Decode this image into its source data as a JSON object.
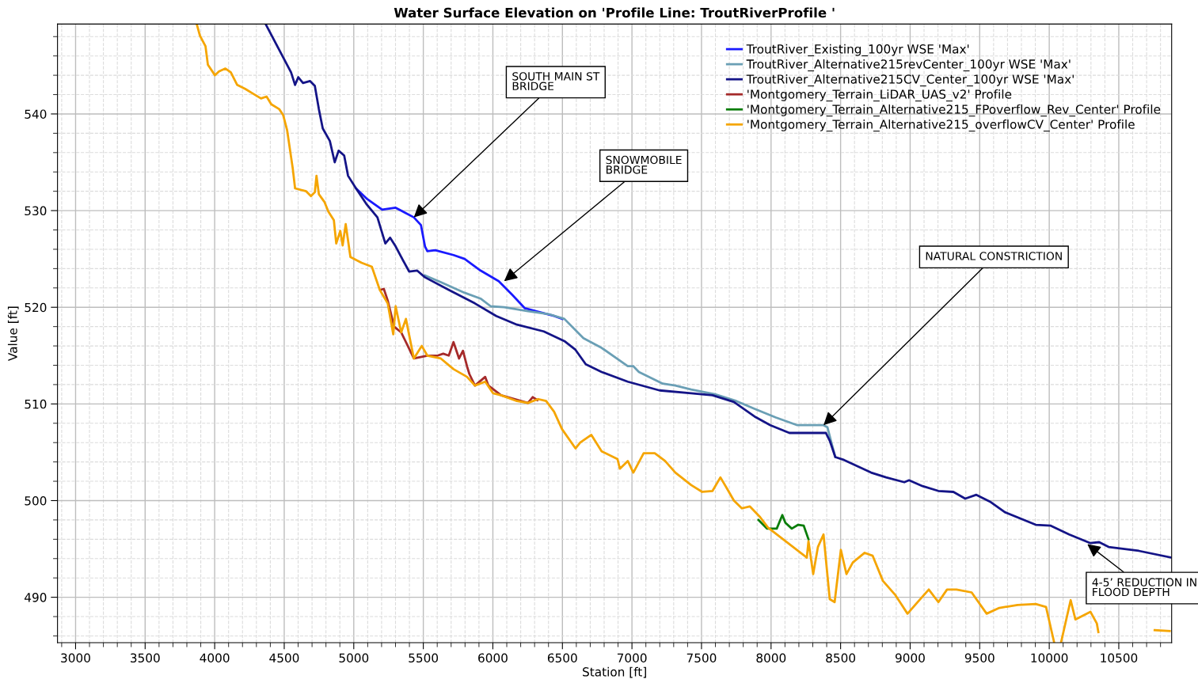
{
  "chart_data": {
    "type": "line",
    "title": "Water Surface Elevation on 'Profile Line: TroutRiverProfile '",
    "xlabel": "Station [ft]",
    "ylabel": "Value [ft]",
    "xlim": [
      2870,
      10880
    ],
    "ylim": [
      485.3,
      549.3
    ],
    "xticks": [
      3000,
      3500,
      4000,
      4500,
      5000,
      5500,
      6000,
      6500,
      7000,
      7500,
      8000,
      8500,
      9000,
      9500,
      10000,
      10500
    ],
    "yticks": [
      490,
      500,
      510,
      520,
      530,
      540
    ],
    "grid": true,
    "legend": "top right",
    "line_style": "solid",
    "marker": "none",
    "series": [
      {
        "name": "TroutRiver_Existing_100yr WSE 'Max'",
        "color": "#1a1aff",
        "x": [
          5016,
          5096,
          5204,
          5301,
          5432,
          5483,
          5512,
          5529,
          5586,
          5717,
          5797,
          5911,
          6042,
          6138,
          6230,
          6309,
          6440,
          6500
        ],
        "values": [
          532.3,
          531.2,
          530.1,
          530.3,
          529.3,
          528.5,
          526.3,
          525.8,
          525.9,
          525.4,
          525.0,
          523.8,
          522.7,
          521.3,
          519.9,
          519.6,
          519.1,
          518.8
        ]
      },
      {
        "name": "TroutRiver_Alternative215revCenter_100yr WSE 'Max'",
        "color": "#6a9fb5",
        "x": [
          5512,
          5626,
          5797,
          5911,
          5985,
          6081,
          6252,
          6400,
          6514,
          6651,
          6782,
          6970,
          7010,
          7050,
          7221,
          7312,
          7426,
          7597,
          7750,
          7881,
          8035,
          8189,
          8377,
          8405,
          8434,
          8462
        ],
        "values": [
          523.3,
          522.6,
          521.5,
          520.9,
          520.1,
          520.0,
          519.6,
          519.3,
          518.8,
          516.8,
          515.8,
          513.9,
          513.9,
          513.3,
          512.1,
          511.9,
          511.5,
          511.0,
          510.3,
          509.5,
          508.6,
          507.8,
          507.8,
          507.6,
          506.0,
          504.5
        ]
      },
      {
        "name": "TroutRiver_Alternative215CV_Center_100yr WSE 'Max'",
        "color": "#141487",
        "x": [
          4370,
          4549,
          4578,
          4601,
          4635,
          4686,
          4720,
          4749,
          4777,
          4828,
          4863,
          4891,
          4931,
          4959,
          5016,
          5090,
          5170,
          5227,
          5261,
          5301,
          5341,
          5398,
          5455,
          5512,
          5683,
          5871,
          6024,
          6173,
          6366,
          6514,
          6594,
          6668,
          6782,
          6970,
          7198,
          7426,
          7579,
          7733,
          7881,
          7995,
          8132,
          8394,
          8422,
          8462,
          8525,
          8719,
          8827,
          8958,
          8992,
          9089,
          9203,
          9311,
          9396,
          9476,
          9573,
          9681,
          9903,
          10011,
          10143,
          10296,
          10359,
          10427,
          10644,
          10880
        ],
        "values": [
          549.2,
          544.3,
          543.0,
          543.8,
          543.2,
          543.4,
          542.9,
          540.5,
          538.5,
          537.2,
          535.0,
          536.2,
          535.7,
          533.6,
          532.3,
          530.7,
          529.3,
          526.6,
          527.2,
          526.3,
          525.2,
          523.7,
          523.8,
          523.1,
          521.8,
          520.4,
          519.1,
          518.2,
          517.5,
          516.5,
          515.6,
          514.1,
          513.3,
          512.3,
          511.4,
          511.1,
          510.9,
          510.2,
          508.7,
          507.8,
          507.0,
          507.0,
          506.2,
          504.5,
          504.2,
          502.9,
          502.4,
          501.9,
          502.1,
          501.5,
          501.0,
          500.9,
          500.2,
          500.6,
          499.9,
          498.8,
          497.5,
          497.4,
          496.5,
          495.6,
          495.7,
          495.2,
          494.8,
          494.1
        ]
      },
      {
        "name": "'Montgomery_Terrain_LiDAR_UAS_v2' Profile",
        "color": "#a52a2a",
        "x": [
          5190,
          5216,
          5244,
          5290,
          5341,
          5432,
          5529,
          5603,
          5643,
          5683,
          5717,
          5757,
          5785,
          5814,
          5831,
          5871,
          5945,
          5968,
          6059,
          6252,
          6286,
          6320
        ],
        "values": [
          521.8,
          521.9,
          520.7,
          518.0,
          517.4,
          514.7,
          515.0,
          515.0,
          515.2,
          515.0,
          516.4,
          514.7,
          515.5,
          513.9,
          513.1,
          511.9,
          512.8,
          511.9,
          510.9,
          510.1,
          510.7,
          510.4
        ]
      },
      {
        "name": "'Montgomery_Terrain_Alternative215_FPoverflow_Rev_Center' Profile",
        "color": "#0a7d0a",
        "x": [
          7910,
          7972,
          8041,
          8081,
          8103,
          8149,
          8195,
          8235,
          8269
        ],
        "values": [
          498.0,
          497.1,
          497.1,
          498.5,
          497.7,
          497.1,
          497.5,
          497.4,
          496.0
        ]
      },
      {
        "name": "'Montgomery_Terrain_Alternative215_overflowCV_Center' Profile",
        "color": "#f5a500",
        "x": [
          3871,
          3894,
          3934,
          3951,
          4002,
          4031,
          4077,
          4116,
          4162,
          4219,
          4276,
          4333,
          4373,
          4407,
          4464,
          4492,
          4521,
          4561,
          4578,
          4658,
          4692,
          4720,
          4732,
          4749,
          4789,
          4817,
          4857,
          4874,
          4903,
          4920,
          4942,
          4976,
          5056,
          5130,
          5187,
          5244,
          5284,
          5301,
          5341,
          5375,
          5432,
          5489,
          5529,
          5626,
          5717,
          5814,
          5871,
          5945,
          6002,
          6059,
          6173,
          6252,
          6326,
          6383,
          6440,
          6497,
          6594,
          6628,
          6708,
          6782,
          6896,
          6913,
          6970,
          7010,
          7084,
          7164,
          7238,
          7312,
          7426,
          7505,
          7579,
          7636,
          7693,
          7733,
          7790,
          7847,
          7921,
          7978,
          8257,
          8269,
          8303,
          8337,
          8377,
          8422,
          8457,
          8502,
          8542,
          8588,
          8673,
          8730,
          8804,
          8895,
          8981,
          9072,
          9134,
          9203,
          9265,
          9333,
          9442,
          9550,
          9641,
          9772,
          9903,
          9977,
          10023,
          10034,
          10060,
          10086,
          10154,
          10188,
          10296,
          10342,
          10353,
          10500,
          10758,
          10866
        ],
        "values": [
          549.3,
          548.1,
          547.0,
          545.1,
          544.0,
          544.4,
          544.7,
          544.3,
          543.0,
          542.6,
          542.1,
          541.6,
          541.8,
          541.0,
          540.5,
          539.9,
          538.3,
          534.4,
          532.3,
          532.0,
          531.5,
          531.9,
          533.6,
          531.7,
          530.9,
          529.9,
          529.0,
          526.6,
          527.9,
          526.4,
          528.6,
          525.2,
          524.6,
          524.2,
          521.8,
          520.4,
          517.2,
          520.1,
          517.4,
          518.8,
          514.7,
          516.0,
          515.0,
          514.7,
          513.6,
          512.8,
          511.9,
          512.3,
          511.1,
          510.9,
          510.3,
          510.1,
          510.5,
          510.3,
          509.2,
          507.4,
          505.4,
          506.0,
          506.8,
          505.1,
          504.3,
          503.3,
          504.1,
          502.9,
          504.9,
          504.9,
          504.1,
          502.9,
          501.6,
          500.9,
          501.0,
          502.4,
          501.0,
          500.0,
          499.2,
          499.4,
          498.3,
          497.2,
          494.1,
          495.8,
          492.4,
          495.2,
          496.5,
          489.8,
          489.5,
          494.9,
          492.4,
          493.6,
          494.6,
          494.3,
          491.7,
          490.2,
          488.3,
          489.8,
          490.8,
          489.5,
          490.8,
          490.8,
          490.5,
          488.3,
          488.9,
          489.2,
          489.3,
          489.0,
          486.1,
          485.4,
          null,
          485.4,
          489.7,
          487.7,
          488.5,
          487.3,
          486.4,
          null,
          486.6,
          486.5
        ]
      }
    ],
    "annotations": [
      {
        "text": "SOUTH MAIN ST\nBRIDGE",
        "x": 5432,
        "y": 529.3
      },
      {
        "text": "SNOWMOBILE\nBRIDGE",
        "x": 6081,
        "y": 522.7
      },
      {
        "text": "NATURAL CONSTRICTION",
        "x": 8377,
        "y": 507.8
      },
      {
        "text": "4-5’ REDUCTION IN\nFLOOD DEPTH",
        "x": 10274,
        "y": 495.5
      }
    ]
  }
}
